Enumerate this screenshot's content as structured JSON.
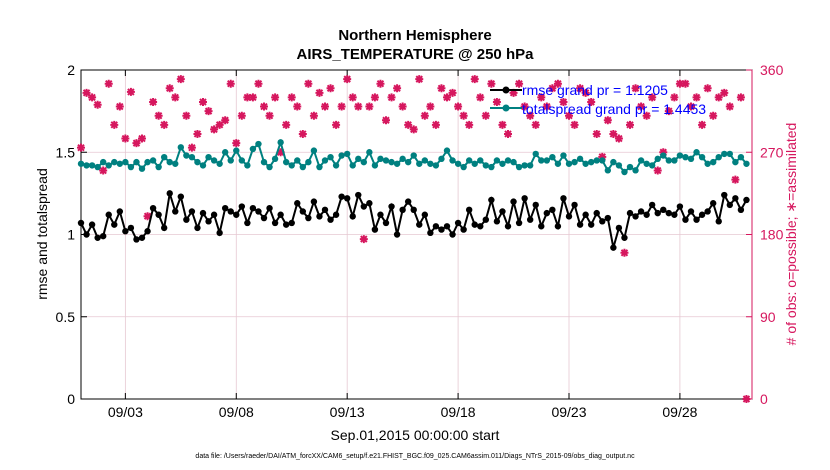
{
  "chart_data": {
    "type": "line",
    "title": "Northern Hemisphere",
    "subtitle": "AIRS_TEMPERATURE @ 250 hPa",
    "xlabel": "Sep.01,2015 00:00:00 start",
    "ylabel": "rmse and totalspread",
    "y2label": "# of obs: o=possible; ∗=assimilated",
    "footnote": "data file: /Users/raeder/DAI/ATM_forcXX/CAM6_setup/f.e21.FHIST_BGC.f09_025.CAM6assim.011/Diags_NTrS_2015-09/obs_diag_output.nc",
    "xlim": [
      1.0,
      31.25
    ],
    "ylim": [
      0,
      2
    ],
    "y2lim": [
      0,
      360
    ],
    "x_ticks": [
      3,
      8,
      13,
      18,
      23,
      28
    ],
    "x_tick_labels": [
      "09/03",
      "09/08",
      "09/13",
      "09/18",
      "09/23",
      "09/28"
    ],
    "y_ticks": [
      0,
      0.5,
      1,
      1.5,
      2
    ],
    "y_tick_labels": [
      "0",
      "0.5",
      "1",
      "1.5",
      "2"
    ],
    "y2_ticks": [
      0,
      90,
      180,
      270,
      360
    ],
    "y2_tick_labels": [
      "0",
      "90",
      "180",
      "270",
      "360"
    ],
    "grid": true,
    "legend": [
      "rmse grand pr = 1.1205",
      "totalspread grand pr = 1.4453"
    ],
    "legend_position": "top-right",
    "colors": {
      "rmse": "#000000",
      "totalspread": "#008080",
      "obs": "#d6175e",
      "legend_text": "#0000ff",
      "grid": "#e6c8d2"
    },
    "x": [
      1.0,
      1.25,
      1.5,
      1.75,
      2.0,
      2.25,
      2.5,
      2.75,
      3.0,
      3.25,
      3.5,
      3.75,
      4.0,
      4.25,
      4.5,
      4.75,
      5.0,
      5.25,
      5.5,
      5.75,
      6.0,
      6.25,
      6.5,
      6.75,
      7.0,
      7.25,
      7.5,
      7.75,
      8.0,
      8.25,
      8.5,
      8.75,
      9.0,
      9.25,
      9.5,
      9.75,
      10.0,
      10.25,
      10.5,
      10.75,
      11.0,
      11.25,
      11.5,
      11.75,
      12.0,
      12.25,
      12.5,
      12.75,
      13.0,
      13.25,
      13.5,
      13.75,
      14.0,
      14.25,
      14.5,
      14.75,
      15.0,
      15.25,
      15.5,
      15.75,
      16.0,
      16.25,
      16.5,
      16.75,
      17.0,
      17.25,
      17.5,
      17.75,
      18.0,
      18.25,
      18.5,
      18.75,
      19.0,
      19.25,
      19.5,
      19.75,
      20.0,
      20.25,
      20.5,
      20.75,
      21.0,
      21.25,
      21.5,
      21.75,
      22.0,
      22.25,
      22.5,
      22.75,
      23.0,
      23.25,
      23.5,
      23.75,
      24.0,
      24.25,
      24.5,
      24.75,
      25.0,
      25.25,
      25.5,
      25.75,
      26.0,
      26.25,
      26.5,
      26.75,
      27.0,
      27.25,
      27.5,
      27.75,
      28.0,
      28.25,
      28.5,
      28.75,
      29.0,
      29.25,
      29.5,
      29.75,
      30.0,
      30.25,
      30.5,
      30.75,
      31.0
    ],
    "series": [
      {
        "name": "rmse",
        "values": [
          1.07,
          1.0,
          1.06,
          0.98,
          0.99,
          1.12,
          1.06,
          1.14,
          1.02,
          1.04,
          0.97,
          0.98,
          1.02,
          1.16,
          1.12,
          1.04,
          1.25,
          1.14,
          1.23,
          1.09,
          1.14,
          1.04,
          1.13,
          1.08,
          1.12,
          1.01,
          1.16,
          1.14,
          1.12,
          1.17,
          1.07,
          1.16,
          1.14,
          1.1,
          1.16,
          1.07,
          1.12,
          1.06,
          1.07,
          1.19,
          1.14,
          1.1,
          1.2,
          1.11,
          1.15,
          1.09,
          1.12,
          1.23,
          1.22,
          1.11,
          1.24,
          1.17,
          1.19,
          1.03,
          1.12,
          1.07,
          1.17,
          1.0,
          1.15,
          1.2,
          1.15,
          1.06,
          1.12,
          1.01,
          1.05,
          1.03,
          1.05,
          1.0,
          1.07,
          1.03,
          1.15,
          1.06,
          1.05,
          1.09,
          1.21,
          1.08,
          1.14,
          1.05,
          1.2,
          1.07,
          1.22,
          1.09,
          1.18,
          1.05,
          1.13,
          1.15,
          1.05,
          1.22,
          1.11,
          1.18,
          1.06,
          1.12,
          1.06,
          1.13,
          1.08,
          1.1,
          0.92,
          1.04,
          0.98,
          1.13,
          1.11,
          1.14,
          1.12,
          1.18,
          1.13,
          1.15,
          1.13,
          1.12,
          1.17,
          1.09,
          1.14,
          1.09,
          1.12,
          1.14,
          1.19,
          1.08,
          1.24,
          1.18,
          1.22,
          1.15,
          1.21
        ]
      },
      {
        "name": "totalspread",
        "values": [
          1.43,
          1.42,
          1.42,
          1.41,
          1.44,
          1.42,
          1.44,
          1.43,
          1.44,
          1.41,
          1.44,
          1.4,
          1.44,
          1.45,
          1.41,
          1.47,
          1.44,
          1.43,
          1.53,
          1.48,
          1.47,
          1.44,
          1.42,
          1.47,
          1.45,
          1.43,
          1.5,
          1.45,
          1.51,
          1.45,
          1.42,
          1.52,
          1.55,
          1.44,
          1.41,
          1.46,
          1.56,
          1.44,
          1.42,
          1.45,
          1.41,
          1.44,
          1.51,
          1.41,
          1.45,
          1.47,
          1.42,
          1.48,
          1.49,
          1.42,
          1.46,
          1.44,
          1.5,
          1.42,
          1.46,
          1.45,
          1.44,
          1.43,
          1.46,
          1.44,
          1.48,
          1.43,
          1.45,
          1.43,
          1.42,
          1.46,
          1.51,
          1.45,
          1.43,
          1.41,
          1.45,
          1.43,
          1.45,
          1.42,
          1.41,
          1.45,
          1.43,
          1.45,
          1.44,
          1.41,
          1.42,
          1.42,
          1.49,
          1.45,
          1.45,
          1.47,
          1.43,
          1.48,
          1.43,
          1.44,
          1.46,
          1.43,
          1.44,
          1.45,
          1.45,
          1.39,
          1.44,
          1.42,
          1.38,
          1.41,
          1.39,
          1.45,
          1.43,
          1.42,
          1.46,
          1.48,
          1.45,
          1.45,
          1.48,
          1.47,
          1.46,
          1.5,
          1.47,
          1.43,
          1.44,
          1.47,
          1.49,
          1.49,
          1.44,
          1.47,
          1.43
        ]
      },
      {
        "name": "obs_assimilated",
        "axis": "right",
        "values": [
          275,
          335,
          330,
          322,
          250,
          345,
          300,
          320,
          285,
          336,
          280,
          285,
          200,
          325,
          310,
          300,
          340,
          330,
          350,
          310,
          275,
          290,
          325,
          315,
          295,
          300,
          305,
          345,
          280,
          310,
          330,
          330,
          345,
          320,
          310,
          330,
          270,
          300,
          330,
          320,
          290,
          345,
          310,
          335,
          320,
          340,
          300,
          320,
          350,
          330,
          320,
          175,
          320,
          330,
          345,
          305,
          330,
          340,
          320,
          300,
          295,
          350,
          310,
          320,
          300,
          340,
          330,
          335,
          320,
          310,
          300,
          350,
          330,
          310,
          345,
          325,
          300,
          290,
          335,
          345,
          320,
          310,
          300,
          330,
          320,
          340,
          345,
          325,
          310,
          300,
          340,
          335,
          325,
          290,
          265,
          305,
          290,
          285,
          160,
          300,
          340,
          320,
          310,
          330,
          250,
          270,
          315,
          330,
          345,
          345,
          320,
          330,
          300,
          340,
          310,
          330,
          335,
          320,
          240,
          330,
          0
        ]
      }
    ]
  }
}
